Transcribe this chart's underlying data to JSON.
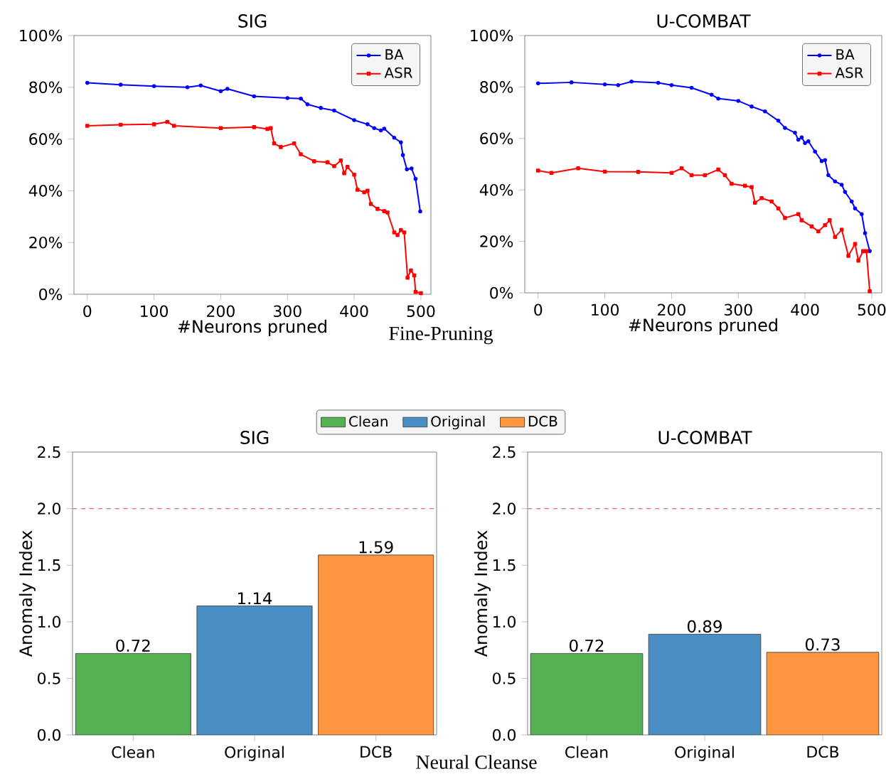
{
  "chart_data": [
    {
      "type": "line",
      "title": "SIG",
      "xlabel": "#Neurons pruned",
      "xlim": [
        -20,
        515
      ],
      "xticks": [
        0,
        100,
        200,
        300,
        400,
        500
      ],
      "ylim": [
        0,
        100
      ],
      "yticks": [
        {
          "value": 0,
          "label": "0%"
        },
        {
          "value": 20,
          "label": "20%"
        },
        {
          "value": 40,
          "label": "40%"
        },
        {
          "value": 60,
          "label": "60%"
        },
        {
          "value": 80,
          "label": "80%"
        },
        {
          "value": 100,
          "label": "100%"
        }
      ],
      "legend": "top right",
      "annotations": [
        "Fine-Pruning"
      ],
      "series": [
        {
          "name": "BA",
          "color": "#0000ff",
          "marker": "circle",
          "x": [
            0,
            50,
            100,
            150,
            170,
            200,
            210,
            250,
            300,
            320,
            330,
            350,
            370,
            400,
            420,
            430,
            440,
            445,
            460,
            470,
            473,
            479,
            486,
            492,
            499
          ],
          "values": [
            81.7,
            81,
            80.4,
            80,
            80.7,
            78.5,
            79.4,
            76.5,
            75.8,
            75.6,
            73.4,
            72,
            71,
            67.3,
            65.7,
            64.2,
            63.3,
            64,
            60.5,
            58.7,
            53.8,
            48.3,
            48.6,
            44.6,
            32
          ]
        },
        {
          "name": "ASR",
          "color": "#ff0000",
          "marker": "square",
          "x": [
            0,
            50,
            100,
            120,
            130,
            200,
            250,
            270,
            275,
            280,
            290,
            310,
            320,
            340,
            360,
            370,
            380,
            385,
            390,
            400,
            405,
            415,
            420,
            425,
            435,
            445,
            450,
            460,
            465,
            470,
            475,
            480,
            485,
            490,
            492,
            500
          ],
          "values": [
            65.1,
            65.5,
            65.7,
            66.6,
            65.1,
            64.2,
            64.6,
            63.9,
            64.2,
            58.3,
            56.9,
            58.3,
            54.1,
            51.4,
            51,
            49.5,
            51.7,
            46.8,
            49.2,
            46.2,
            40.4,
            39.4,
            40,
            34.9,
            33,
            32.1,
            31.6,
            23.9,
            22.9,
            24.8,
            23.9,
            6.4,
            9.2,
            7.3,
            0.9,
            0.4
          ]
        }
      ]
    },
    {
      "type": "line",
      "title": "U-COMBAT",
      "xlabel": "#Neurons pruned",
      "xlim": [
        -20,
        515
      ],
      "xticks": [
        0,
        100,
        200,
        300,
        400,
        500
      ],
      "ylim": [
        0,
        100
      ],
      "yticks": [
        {
          "value": 0,
          "label": "0%"
        },
        {
          "value": 20,
          "label": "20%"
        },
        {
          "value": 40,
          "label": "40%"
        },
        {
          "value": 60,
          "label": "60%"
        },
        {
          "value": 80,
          "label": "80%"
        },
        {
          "value": 100,
          "label": "100%"
        }
      ],
      "legend": "top right",
      "series": [
        {
          "name": "BA",
          "color": "#0000ff",
          "marker": "circle",
          "x": [
            0,
            50,
            100,
            120,
            140,
            180,
            200,
            230,
            260,
            270,
            300,
            320,
            340,
            360,
            370,
            385,
            390,
            395,
            400,
            405,
            415,
            425,
            430,
            435,
            445,
            455,
            460,
            470,
            475,
            485,
            490,
            497
          ],
          "values": [
            81.4,
            81.8,
            81,
            80.7,
            82.1,
            81.6,
            80.7,
            79.7,
            77,
            75.5,
            74.6,
            72.4,
            70.5,
            66.9,
            64.1,
            62.2,
            59.5,
            60.4,
            58.2,
            58.9,
            54.9,
            51.2,
            51.6,
            45.7,
            43.3,
            42,
            39.2,
            35.5,
            32.8,
            30.6,
            23.2,
            16.2
          ]
        },
        {
          "name": "ASR",
          "color": "#ff0000",
          "marker": "square",
          "x": [
            0,
            20,
            60,
            100,
            150,
            200,
            215,
            230,
            250,
            270,
            280,
            290,
            310,
            320,
            325,
            335,
            350,
            360,
            370,
            390,
            395,
            410,
            420,
            430,
            437,
            445,
            455,
            465,
            475,
            480,
            487,
            492,
            497
          ],
          "values": [
            47.5,
            46.6,
            48.4,
            47.1,
            47,
            46.6,
            48.4,
            45.7,
            45.7,
            47.9,
            45.7,
            42.4,
            41.6,
            41.1,
            35,
            36.8,
            35.5,
            32.8,
            29.1,
            30.6,
            28.2,
            25.8,
            23.9,
            26.3,
            28.2,
            21.7,
            24.5,
            14.4,
            19,
            12.5,
            16.2,
            16.2,
            0.6
          ]
        }
      ]
    },
    {
      "type": "bar",
      "title": "SIG",
      "ylabel": "Anomaly Index",
      "categories": [
        "Clean",
        "Original",
        "DCB"
      ],
      "series": [
        {
          "name": "Clean",
          "color": "#55b153",
          "values": [
            0.72,
            null,
            null
          ]
        },
        {
          "name": "Original",
          "color": "#4a8fc4",
          "values": [
            null,
            1.14,
            null
          ]
        },
        {
          "name": "DCB",
          "color": "#fd963e",
          "values": [
            null,
            null,
            1.59
          ]
        }
      ],
      "data_labels": true,
      "legend": "top",
      "ylim": [
        0,
        2.5
      ],
      "yticks": [
        {
          "value": 0,
          "label": "0.0"
        },
        {
          "value": 0.5,
          "label": "0.5"
        },
        {
          "value": 1,
          "label": "1.0"
        },
        {
          "value": 1.5,
          "label": "1.5"
        },
        {
          "value": 2,
          "label": "2.0"
        },
        {
          "value": 2.5,
          "label": "2.5"
        }
      ],
      "ref_lines": [
        {
          "axis": "y",
          "value": 2,
          "color": "#e07070",
          "line_style": "dashed"
        }
      ],
      "annotations": [
        "Neural Cleanse"
      ]
    },
    {
      "type": "bar",
      "title": "U-COMBAT",
      "ylabel": "Anomaly Index",
      "categories": [
        "Clean",
        "Original",
        "DCB"
      ],
      "values": [
        0.72,
        0.89,
        0.73
      ],
      "colors": [
        "#55b153",
        "#4a8fc4",
        "#fd963e"
      ],
      "data_labels": true,
      "ylim": [
        0,
        2.5
      ],
      "yticks": [
        {
          "value": 0,
          "label": "0.0"
        },
        {
          "value": 0.5,
          "label": "0.5"
        },
        {
          "value": 1,
          "label": "1.0"
        },
        {
          "value": 1.5,
          "label": "1.5"
        },
        {
          "value": 2,
          "label": "2.0"
        },
        {
          "value": 2.5,
          "label": "2.5"
        }
      ],
      "ref_lines": [
        {
          "axis": "y",
          "value": 2,
          "color": "#e07070",
          "line_style": "dashed"
        }
      ]
    }
  ]
}
